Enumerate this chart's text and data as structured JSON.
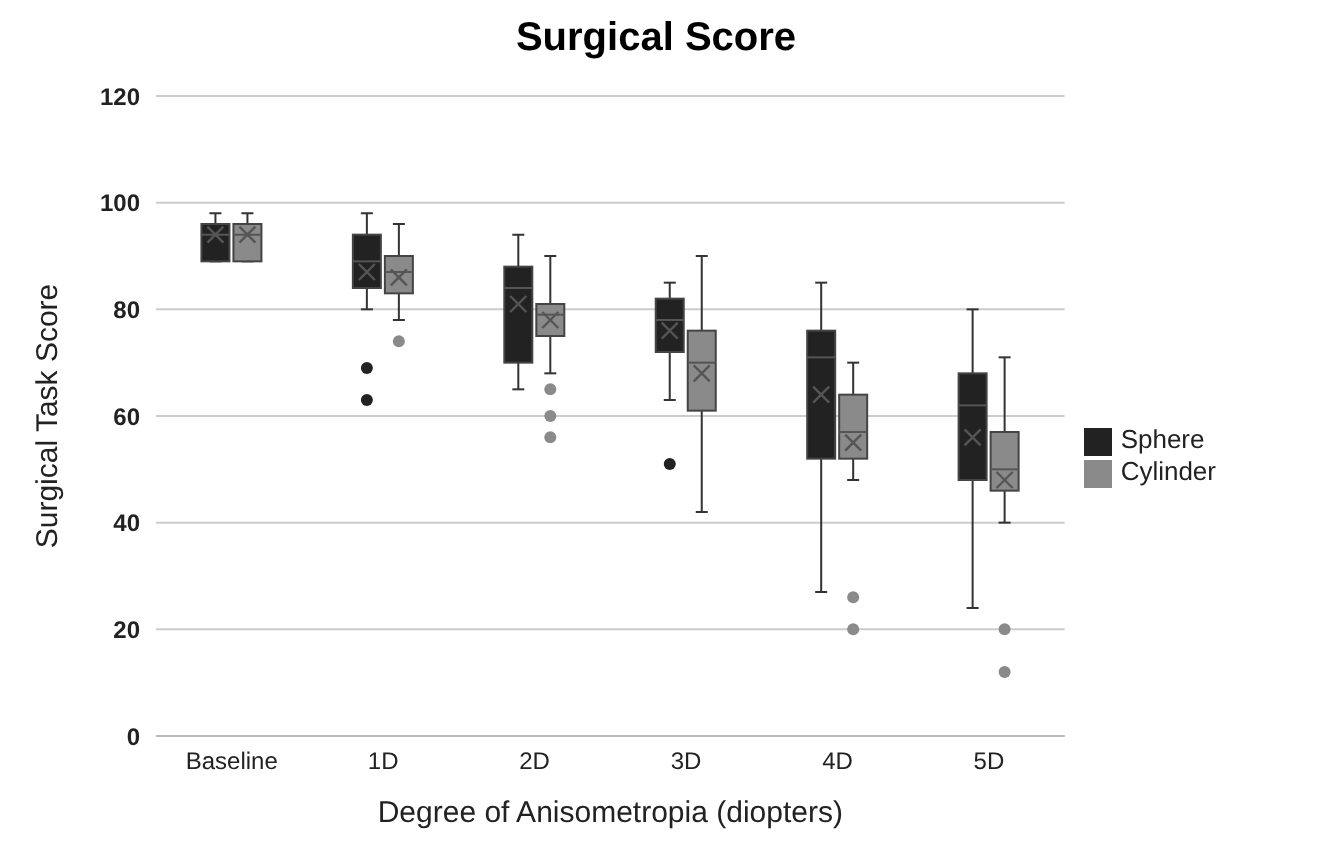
{
  "chart_data": {
    "type": "box",
    "title": "Surgical Score",
    "xlabel": "Degree of Anisometropia  (diopters)",
    "ylabel": "Surgical Task Score",
    "categories": [
      "Baseline",
      "1D",
      "2D",
      "3D",
      "4D",
      "5D"
    ],
    "ylim": [
      0,
      120
    ],
    "yticks": [
      0,
      20,
      40,
      60,
      80,
      100,
      120
    ],
    "grid": "y",
    "legend": "right",
    "marker": "cross",
    "series": [
      {
        "name": "Sphere",
        "color": "#222222",
        "boxes": [
          {
            "low": 89,
            "q1": 89,
            "median": 94,
            "q3": 96,
            "high": 98,
            "mean": 94
          },
          {
            "low": 80,
            "q1": 84,
            "median": 89,
            "q3": 94,
            "high": 98,
            "mean": 87,
            "outliers": [
              69,
              63
            ]
          },
          {
            "low": 65,
            "q1": 70,
            "median": 84,
            "q3": 88,
            "high": 94,
            "mean": 81
          },
          {
            "low": 63,
            "q1": 72,
            "median": 78,
            "q3": 82,
            "high": 85,
            "mean": 76,
            "outliers": [
              51
            ]
          },
          {
            "low": 27,
            "q1": 52,
            "median": 71,
            "q3": 76,
            "high": 85,
            "mean": 64
          },
          {
            "low": 24,
            "q1": 48,
            "median": 62,
            "q3": 68,
            "high": 80,
            "mean": 56
          }
        ]
      },
      {
        "name": "Cylinder",
        "color": "#8a8a8a",
        "boxes": [
          {
            "low": 89,
            "q1": 89,
            "median": 94,
            "q3": 96,
            "high": 98,
            "mean": 94
          },
          {
            "low": 78,
            "q1": 83,
            "median": 87,
            "q3": 90,
            "high": 96,
            "mean": 86,
            "outliers": [
              74
            ]
          },
          {
            "low": 68,
            "q1": 75,
            "median": 79,
            "q3": 81,
            "high": 90,
            "mean": 78,
            "outliers": [
              65,
              60,
              56
            ]
          },
          {
            "low": 42,
            "q1": 61,
            "median": 70,
            "q3": 76,
            "high": 90,
            "mean": 68
          },
          {
            "low": 48,
            "q1": 52,
            "median": 57,
            "q3": 64,
            "high": 70,
            "mean": 55,
            "outliers": [
              26,
              20
            ]
          },
          {
            "low": 40,
            "q1": 46,
            "median": 50,
            "q3": 57,
            "high": 71,
            "mean": 48,
            "outliers": [
              20,
              12
            ]
          }
        ]
      }
    ]
  }
}
